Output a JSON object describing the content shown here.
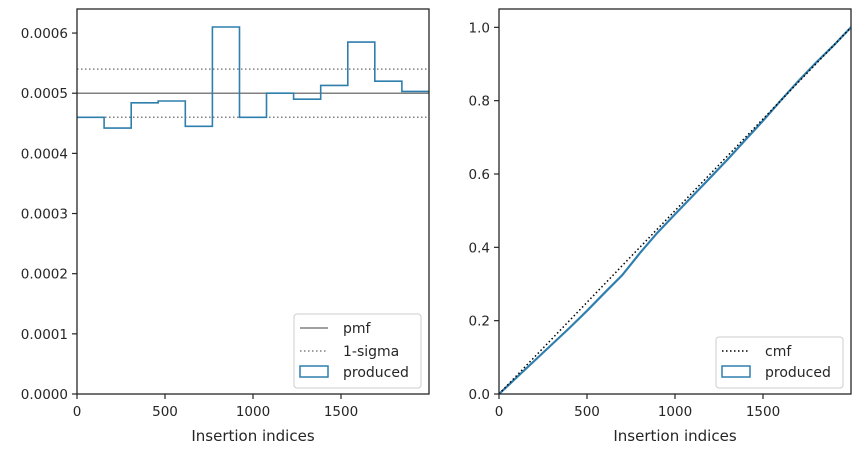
{
  "colors": {
    "pmf": "#808080",
    "sigma": "#808080",
    "produced": "#2f7fae",
    "cmf": "#000000",
    "axes": "#262626"
  },
  "chart_data": [
    {
      "type": "histogram",
      "xlabel": "Insertion indices",
      "ylabel": "",
      "xlim": [
        0,
        2000
      ],
      "ylim": [
        0,
        0.00064
      ],
      "xticks": [
        0,
        500,
        1000,
        1500
      ],
      "xtick_labels": [
        "0",
        "500",
        "1000",
        "1500"
      ],
      "yticks": [
        0,
        0.0001,
        0.0002,
        0.0003,
        0.0004,
        0.0005,
        0.0006
      ],
      "ytick_labels": [
        "0.0000",
        "0.0001",
        "0.0002",
        "0.0003",
        "0.0004",
        "0.0005",
        "0.0006"
      ],
      "legend_position": "bottom-right",
      "pmf": {
        "name": "pmf",
        "y": 0.0005
      },
      "sigma": {
        "name": "1-sigma",
        "y": [
          0.00046,
          0.00054
        ]
      },
      "produced": {
        "name": "produced",
        "bin_edges": [
          0,
          153.8,
          307.7,
          461.5,
          615.4,
          769.2,
          923.1,
          1076.9,
          1230.8,
          1384.6,
          1538.5,
          1692.3,
          1846.2,
          2000
        ],
        "values": [
          0.00046,
          0.000442,
          0.000484,
          0.000487,
          0.000445,
          0.00061,
          0.00046,
          0.0005,
          0.00049,
          0.000513,
          0.000585,
          0.00052,
          0.000503
        ]
      }
    },
    {
      "type": "line",
      "xlabel": "Insertion indices",
      "ylabel": "",
      "xlim": [
        0,
        2000
      ],
      "ylim": [
        0,
        1.05
      ],
      "xticks": [
        0,
        500,
        1000,
        1500
      ],
      "xtick_labels": [
        "0",
        "500",
        "1000",
        "1500"
      ],
      "yticks": [
        0,
        0.2,
        0.4,
        0.6,
        0.8,
        1.0
      ],
      "ytick_labels": [
        "0.0",
        "0.2",
        "0.4",
        "0.6",
        "0.8",
        "1.0"
      ],
      "legend_position": "bottom-right",
      "cmf": {
        "name": "cmf",
        "x": [
          0,
          2000
        ],
        "y": [
          0,
          1.0
        ]
      },
      "produced": {
        "name": "produced",
        "x": [
          0,
          100,
          200,
          300,
          400,
          500,
          600,
          700,
          800,
          900,
          1000,
          1100,
          1200,
          1300,
          1400,
          1500,
          1600,
          1700,
          1800,
          1900,
          2000
        ],
        "y": [
          0,
          0.045,
          0.09,
          0.135,
          0.18,
          0.227,
          0.276,
          0.324,
          0.384,
          0.44,
          0.49,
          0.54,
          0.59,
          0.64,
          0.693,
          0.745,
          0.8,
          0.853,
          0.903,
          0.95,
          1.0
        ]
      }
    }
  ]
}
